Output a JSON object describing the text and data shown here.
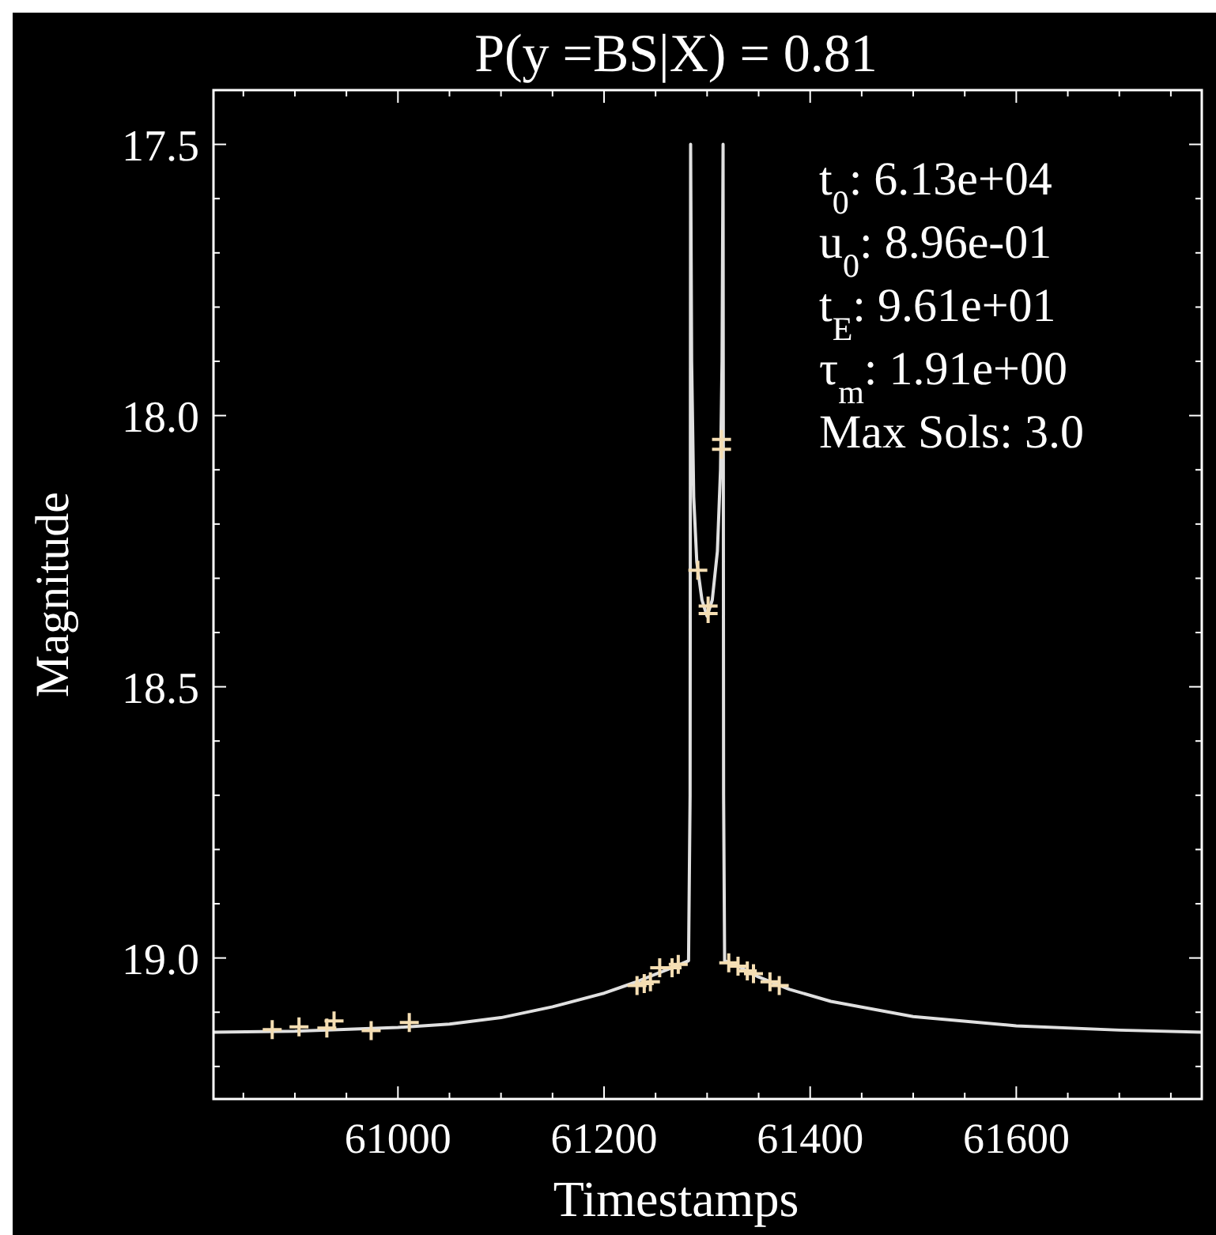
{
  "chart_data": {
    "type": "scatter",
    "title": "P(y =BS|X) = 0.81",
    "xlabel": "Timestamps",
    "ylabel": "Magnitude",
    "annotations": [
      "t$_{0}$: 6.13e+04",
      "u$_{0}$: 8.96e-01",
      "t$_{E}$: 9.61e+01",
      "τ$_{m}$: 1.91e+00",
      "Max Sols: 3.0"
    ],
    "xlim": [
      60821,
      61780
    ],
    "ylim": [
      19.26,
      17.4
    ],
    "xticks": [
      {
        "value": 60850,
        "label": null
      },
      {
        "value": 60900,
        "label": null
      },
      {
        "value": 60950,
        "label": null
      },
      61000,
      {
        "value": 61050,
        "label": null
      },
      {
        "value": 61100,
        "label": null
      },
      {
        "value": 61150,
        "label": null
      },
      61200,
      {
        "value": 61250,
        "label": null
      },
      {
        "value": 61300,
        "label": null
      },
      {
        "value": 61350,
        "label": null
      },
      61400,
      {
        "value": 61450,
        "label": null
      },
      {
        "value": 61500,
        "label": null
      },
      {
        "value": 61550,
        "label": null
      },
      61600,
      {
        "value": 61650,
        "label": null
      },
      {
        "value": 61700,
        "label": null
      },
      {
        "value": 61750,
        "label": null
      }
    ],
    "yticks": [
      {
        "value": 17.5,
        "label": "17.5"
      },
      {
        "value": 17.6,
        "label": null
      },
      {
        "value": 17.7,
        "label": null
      },
      {
        "value": 17.8,
        "label": null
      },
      {
        "value": 17.9,
        "label": null
      },
      {
        "value": 18.0,
        "label": "18.0"
      },
      {
        "value": 18.1,
        "label": null
      },
      {
        "value": 18.2,
        "label": null
      },
      {
        "value": 18.3,
        "label": null
      },
      {
        "value": 18.4,
        "label": null
      },
      {
        "value": 18.5,
        "label": "18.5"
      },
      {
        "value": 18.6,
        "label": null
      },
      {
        "value": 18.7,
        "label": null
      },
      {
        "value": 18.8,
        "label": null
      },
      {
        "value": 18.9,
        "label": null
      },
      {
        "value": 19.0,
        "label": "19.0"
      },
      {
        "value": 19.1,
        "label": null
      },
      {
        "value": 19.2,
        "label": null
      }
    ],
    "grid": false,
    "series": [
      {
        "type": "line",
        "color": "#e0e0e0",
        "marker": "none",
        "line_style": "solid",
        "x": [
          60821,
          60900,
          61000,
          61050,
          61100,
          61150,
          61200,
          61230,
          61250,
          61270,
          61282,
          61283.5,
          61284,
          61285,
          61287,
          61290,
          61295,
          61300,
          61305,
          61310,
          61313,
          61314.5,
          61315.5,
          61316,
          61317,
          61330,
          61350,
          61380,
          61420,
          61500,
          61600,
          61700,
          61780
        ],
        "values": [
          19.137,
          19.135,
          19.128,
          19.122,
          19.11,
          19.09,
          19.065,
          19.045,
          19.03,
          19.015,
          19.005,
          18.7,
          17.5,
          17.9,
          18.15,
          18.27,
          18.34,
          18.37,
          18.34,
          18.25,
          18.1,
          17.9,
          17.5,
          18.7,
          19.005,
          19.015,
          19.035,
          19.058,
          19.08,
          19.108,
          19.125,
          19.133,
          19.137
        ]
      },
      {
        "color": "#f5deb3",
        "marker": "cross",
        "x": [
          60878,
          60904,
          60931,
          60938,
          60974,
          61011,
          61232,
          61239,
          61245,
          61254,
          61266,
          61272,
          61291,
          61301,
          61301,
          61314,
          61314,
          61321,
          61330,
          61339,
          61345,
          61361,
          61370
        ],
        "values": [
          19.132,
          19.127,
          19.129,
          19.116,
          19.134,
          19.119,
          19.051,
          19.047,
          19.044,
          19.018,
          19.018,
          19.012,
          18.285,
          18.351,
          18.365,
          18.044,
          18.062,
          19.009,
          19.015,
          19.024,
          19.029,
          19.044,
          19.051
        ]
      }
    ]
  }
}
